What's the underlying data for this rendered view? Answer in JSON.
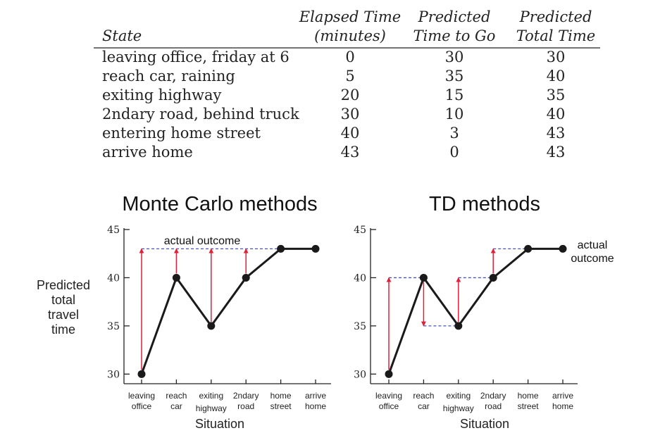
{
  "table": {
    "headers": [
      [
        "",
        "State"
      ],
      [
        "Elapsed Time",
        "(minutes)"
      ],
      [
        "Predicted",
        "Time to Go"
      ],
      [
        "Predicted",
        "Total Time"
      ]
    ],
    "rows": [
      [
        "leaving office, friday at 6",
        "0",
        "30",
        "30"
      ],
      [
        "reach car, raining",
        "5",
        "35",
        "40"
      ],
      [
        "exiting highway",
        "20",
        "15",
        "35"
      ],
      [
        "2ndary road, behind truck",
        "30",
        "10",
        "40"
      ],
      [
        "entering home street",
        "40",
        "3",
        "43"
      ],
      [
        "arrive home",
        "43",
        "0",
        "43"
      ]
    ]
  },
  "shared_ylabel": [
    "Predicted",
    "total",
    "travel",
    "time"
  ],
  "chart_data": [
    {
      "type": "line",
      "title": "Monte Carlo methods",
      "xlabel": "Situation",
      "ylabel": "Predicted total travel time",
      "categories": [
        [
          "leaving",
          "office"
        ],
        [
          "reach",
          "car"
        ],
        [
          "exiting",
          "highway"
        ],
        [
          "2ndary",
          "road"
        ],
        [
          "home",
          "street"
        ],
        [
          "arrive",
          "home"
        ]
      ],
      "y": [
        30,
        40,
        35,
        40,
        43,
        43
      ],
      "ylim": [
        29,
        45
      ],
      "yticks": [
        30,
        35,
        40,
        45
      ],
      "actual_outcome": 43,
      "annotation": [
        "actual outcome"
      ],
      "updates": [
        {
          "index": 0,
          "from": 30,
          "to": 43
        },
        {
          "index": 1,
          "from": 40,
          "to": 43
        },
        {
          "index": 2,
          "from": 35,
          "to": 43
        },
        {
          "index": 3,
          "from": 40,
          "to": 43
        }
      ],
      "colors": {
        "line": "#1a1a1a",
        "arrow": "#e0203a",
        "dashed": "#4a55b8"
      }
    },
    {
      "type": "line",
      "title": "TD methods",
      "xlabel": "Situation",
      "ylabel": "Predicted total travel time",
      "categories": [
        [
          "leaving",
          "office"
        ],
        [
          "reach",
          "car"
        ],
        [
          "exiting",
          "highway"
        ],
        [
          "2ndary",
          "road"
        ],
        [
          "home",
          "street"
        ],
        [
          "arrive",
          "home"
        ]
      ],
      "y": [
        30,
        40,
        35,
        40,
        43,
        43
      ],
      "ylim": [
        29,
        45
      ],
      "yticks": [
        30,
        35,
        40,
        45
      ],
      "actual_outcome": 43,
      "annotation": [
        "actual",
        "outcome"
      ],
      "updates": [
        {
          "index": 0,
          "from": 30,
          "to": 40
        },
        {
          "index": 1,
          "from": 40,
          "to": 35
        },
        {
          "index": 2,
          "from": 35,
          "to": 40
        },
        {
          "index": 3,
          "from": 40,
          "to": 43
        }
      ],
      "colors": {
        "line": "#1a1a1a",
        "arrow": "#e0203a",
        "dashed": "#4a55b8"
      }
    }
  ]
}
